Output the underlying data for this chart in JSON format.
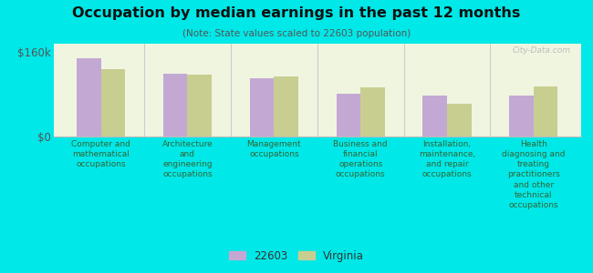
{
  "title": "Occupation by median earnings in the past 12 months",
  "subtitle": "(Note: State values scaled to 22603 population)",
  "background_outer": "#00e8e8",
  "background_inner": "#f0f5e0",
  "categories": [
    "Computer and\nmathematical\noccupations",
    "Architecture\nand\nengineering\noccupations",
    "Management\noccupations",
    "Business and\nfinancial\noperations\noccupations",
    "Installation,\nmaintenance,\nand repair\noccupations",
    "Health\ndiagnosing and\ntreating\npractitioners\nand other\ntechnical\noccupations"
  ],
  "values_22603": [
    148000,
    118000,
    110000,
    80000,
    77000,
    77000
  ],
  "values_virginia": [
    127000,
    116000,
    114000,
    93000,
    62000,
    95000
  ],
  "color_22603": "#c4a8d4",
  "color_virginia": "#c8ce90",
  "ylim": [
    0,
    175000
  ],
  "ytick_vals": [
    0,
    160000
  ],
  "ytick_labels": [
    "$0",
    "$160k"
  ],
  "legend_22603": "22603",
  "legend_virginia": "Virginia",
  "watermark": "City-Data.com"
}
